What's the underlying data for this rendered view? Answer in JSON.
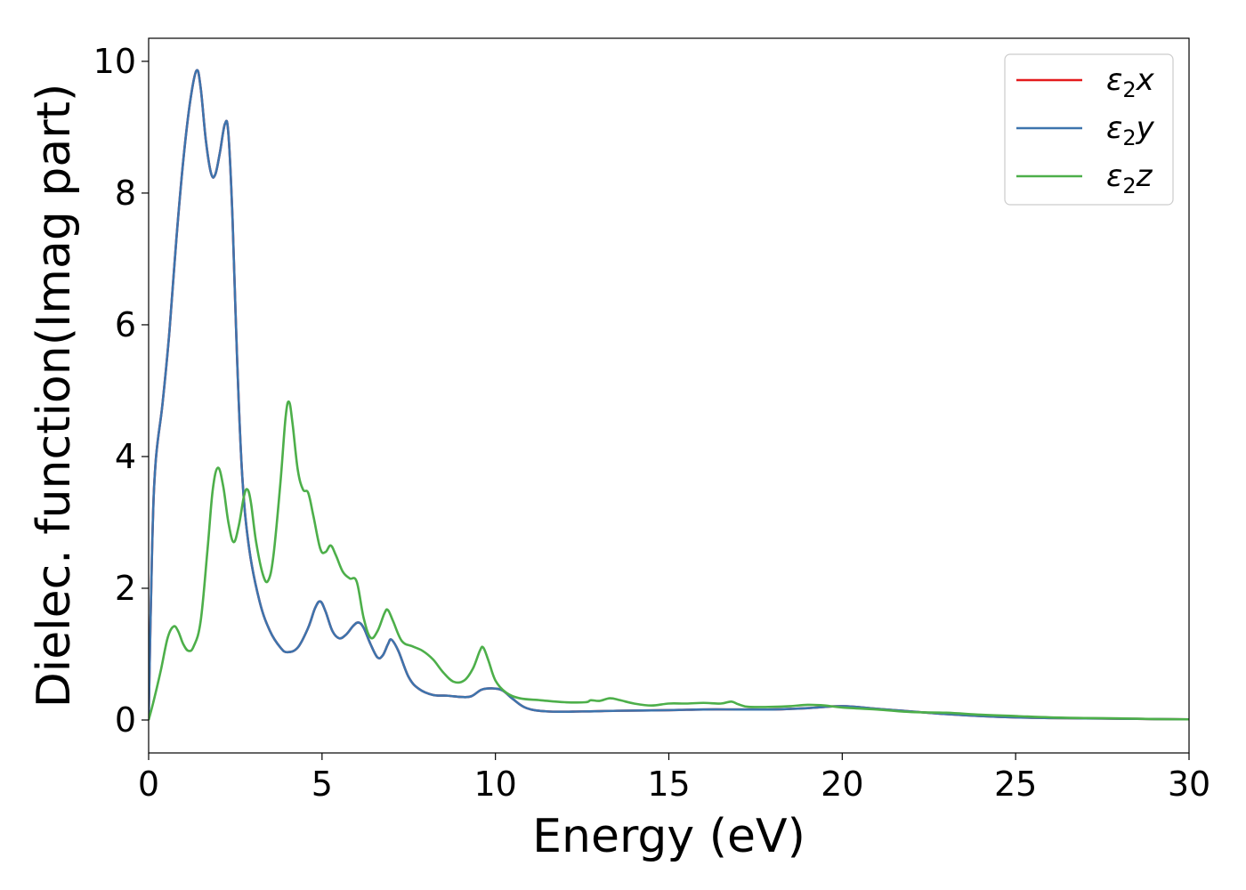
{
  "chart_data": {
    "type": "line",
    "title": "",
    "xlabel": "Energy (eV)",
    "ylabel": "Dielec. function(Imag part)",
    "xlim": [
      0,
      30
    ],
    "ylim": [
      -0.5,
      10.35
    ],
    "xticks": [
      0,
      5,
      10,
      15,
      20,
      25,
      30
    ],
    "yticks": [
      0,
      2,
      4,
      6,
      8,
      10
    ],
    "grid": false,
    "legend_position": "top-right",
    "series": [
      {
        "name": "ε₂x",
        "legend_label": {
          "sym": "ε",
          "sub": "2",
          "var": "x"
        },
        "color": "#e41a1c",
        "points": [
          [
            0,
            0
          ],
          [
            0.1,
            2.6
          ],
          [
            0.2,
            3.9
          ],
          [
            0.4,
            4.8
          ],
          [
            0.6,
            5.9
          ],
          [
            0.8,
            7.3
          ],
          [
            1.0,
            8.5
          ],
          [
            1.2,
            9.4
          ],
          [
            1.38,
            9.86
          ],
          [
            1.5,
            9.6
          ],
          [
            1.65,
            8.8
          ],
          [
            1.8,
            8.3
          ],
          [
            1.92,
            8.28
          ],
          [
            2.05,
            8.6
          ],
          [
            2.2,
            9.05
          ],
          [
            2.3,
            8.9
          ],
          [
            2.42,
            7.6
          ],
          [
            2.55,
            5.5
          ],
          [
            2.7,
            3.7
          ],
          [
            2.9,
            2.6
          ],
          [
            3.2,
            1.8
          ],
          [
            3.5,
            1.35
          ],
          [
            3.8,
            1.1
          ],
          [
            4.0,
            1.03
          ],
          [
            4.3,
            1.1
          ],
          [
            4.6,
            1.4
          ],
          [
            4.8,
            1.7
          ],
          [
            4.95,
            1.8
          ],
          [
            5.1,
            1.65
          ],
          [
            5.3,
            1.35
          ],
          [
            5.5,
            1.24
          ],
          [
            5.7,
            1.3
          ],
          [
            5.9,
            1.43
          ],
          [
            6.05,
            1.48
          ],
          [
            6.2,
            1.4
          ],
          [
            6.4,
            1.15
          ],
          [
            6.6,
            0.95
          ],
          [
            6.75,
            0.98
          ],
          [
            6.9,
            1.15
          ],
          [
            7.0,
            1.22
          ],
          [
            7.2,
            1.05
          ],
          [
            7.5,
            0.65
          ],
          [
            7.8,
            0.47
          ],
          [
            8.2,
            0.38
          ],
          [
            8.6,
            0.37
          ],
          [
            9.0,
            0.35
          ],
          [
            9.3,
            0.36
          ],
          [
            9.6,
            0.46
          ],
          [
            9.9,
            0.48
          ],
          [
            10.2,
            0.45
          ],
          [
            10.5,
            0.32
          ],
          [
            10.9,
            0.18
          ],
          [
            11.5,
            0.13
          ],
          [
            12.5,
            0.13
          ],
          [
            13.5,
            0.14
          ],
          [
            15.0,
            0.15
          ],
          [
            16.0,
            0.16
          ],
          [
            17.0,
            0.16
          ],
          [
            18.0,
            0.16
          ],
          [
            19.0,
            0.18
          ],
          [
            20.0,
            0.21
          ],
          [
            21.0,
            0.17
          ],
          [
            22.0,
            0.13
          ],
          [
            23.0,
            0.09
          ],
          [
            24.0,
            0.06
          ],
          [
            25.0,
            0.04
          ],
          [
            26.0,
            0.03
          ],
          [
            27.0,
            0.025
          ],
          [
            28.0,
            0.02
          ],
          [
            29.0,
            0.015
          ],
          [
            30.0,
            0.01
          ]
        ]
      },
      {
        "name": "ε₂y",
        "legend_label": {
          "sym": "ε",
          "sub": "2",
          "var": "y"
        },
        "color": "#3d74ad",
        "points": [
          [
            0,
            0
          ],
          [
            0.1,
            2.6
          ],
          [
            0.2,
            3.9
          ],
          [
            0.4,
            4.8
          ],
          [
            0.6,
            5.9
          ],
          [
            0.8,
            7.3
          ],
          [
            1.0,
            8.5
          ],
          [
            1.2,
            9.4
          ],
          [
            1.38,
            9.86
          ],
          [
            1.5,
            9.6
          ],
          [
            1.65,
            8.8
          ],
          [
            1.8,
            8.3
          ],
          [
            1.92,
            8.28
          ],
          [
            2.05,
            8.6
          ],
          [
            2.2,
            9.05
          ],
          [
            2.3,
            8.9
          ],
          [
            2.42,
            7.6
          ],
          [
            2.55,
            5.5
          ],
          [
            2.7,
            3.7
          ],
          [
            2.9,
            2.6
          ],
          [
            3.2,
            1.8
          ],
          [
            3.5,
            1.35
          ],
          [
            3.8,
            1.1
          ],
          [
            4.0,
            1.03
          ],
          [
            4.3,
            1.1
          ],
          [
            4.6,
            1.4
          ],
          [
            4.8,
            1.7
          ],
          [
            4.95,
            1.8
          ],
          [
            5.1,
            1.65
          ],
          [
            5.3,
            1.35
          ],
          [
            5.5,
            1.24
          ],
          [
            5.7,
            1.3
          ],
          [
            5.9,
            1.43
          ],
          [
            6.05,
            1.48
          ],
          [
            6.2,
            1.4
          ],
          [
            6.4,
            1.15
          ],
          [
            6.6,
            0.95
          ],
          [
            6.75,
            0.98
          ],
          [
            6.9,
            1.15
          ],
          [
            7.0,
            1.22
          ],
          [
            7.2,
            1.05
          ],
          [
            7.5,
            0.65
          ],
          [
            7.8,
            0.47
          ],
          [
            8.2,
            0.38
          ],
          [
            8.6,
            0.37
          ],
          [
            9.0,
            0.35
          ],
          [
            9.3,
            0.36
          ],
          [
            9.6,
            0.46
          ],
          [
            9.9,
            0.48
          ],
          [
            10.2,
            0.45
          ],
          [
            10.5,
            0.32
          ],
          [
            10.9,
            0.18
          ],
          [
            11.5,
            0.13
          ],
          [
            12.5,
            0.13
          ],
          [
            13.5,
            0.14
          ],
          [
            15.0,
            0.15
          ],
          [
            16.0,
            0.16
          ],
          [
            17.0,
            0.16
          ],
          [
            18.0,
            0.16
          ],
          [
            19.0,
            0.18
          ],
          [
            20.0,
            0.21
          ],
          [
            21.0,
            0.17
          ],
          [
            22.0,
            0.13
          ],
          [
            23.0,
            0.09
          ],
          [
            24.0,
            0.06
          ],
          [
            25.0,
            0.04
          ],
          [
            26.0,
            0.03
          ],
          [
            27.0,
            0.025
          ],
          [
            28.0,
            0.02
          ],
          [
            29.0,
            0.015
          ],
          [
            30.0,
            0.01
          ]
        ]
      },
      {
        "name": "ε₂z",
        "legend_label": {
          "sym": "ε",
          "sub": "2",
          "var": "z"
        },
        "color": "#4daf4a",
        "points": [
          [
            0,
            0
          ],
          [
            0.15,
            0.3
          ],
          [
            0.35,
            0.75
          ],
          [
            0.55,
            1.25
          ],
          [
            0.72,
            1.42
          ],
          [
            0.85,
            1.35
          ],
          [
            1.0,
            1.15
          ],
          [
            1.15,
            1.05
          ],
          [
            1.3,
            1.12
          ],
          [
            1.5,
            1.5
          ],
          [
            1.7,
            2.6
          ],
          [
            1.85,
            3.5
          ],
          [
            2.0,
            3.83
          ],
          [
            2.15,
            3.55
          ],
          [
            2.3,
            3.0
          ],
          [
            2.45,
            2.7
          ],
          [
            2.6,
            2.95
          ],
          [
            2.75,
            3.4
          ],
          [
            2.85,
            3.5
          ],
          [
            2.95,
            3.3
          ],
          [
            3.1,
            2.7
          ],
          [
            3.3,
            2.2
          ],
          [
            3.45,
            2.12
          ],
          [
            3.6,
            2.5
          ],
          [
            3.8,
            3.6
          ],
          [
            3.95,
            4.6
          ],
          [
            4.05,
            4.83
          ],
          [
            4.15,
            4.5
          ],
          [
            4.3,
            3.8
          ],
          [
            4.45,
            3.5
          ],
          [
            4.6,
            3.45
          ],
          [
            4.75,
            3.1
          ],
          [
            4.95,
            2.6
          ],
          [
            5.1,
            2.55
          ],
          [
            5.25,
            2.65
          ],
          [
            5.4,
            2.5
          ],
          [
            5.6,
            2.25
          ],
          [
            5.8,
            2.15
          ],
          [
            6.0,
            2.1
          ],
          [
            6.2,
            1.55
          ],
          [
            6.4,
            1.25
          ],
          [
            6.6,
            1.35
          ],
          [
            6.8,
            1.62
          ],
          [
            6.9,
            1.67
          ],
          [
            7.05,
            1.5
          ],
          [
            7.3,
            1.2
          ],
          [
            7.6,
            1.12
          ],
          [
            7.9,
            1.05
          ],
          [
            8.2,
            0.92
          ],
          [
            8.5,
            0.72
          ],
          [
            8.8,
            0.58
          ],
          [
            9.1,
            0.6
          ],
          [
            9.35,
            0.78
          ],
          [
            9.55,
            1.05
          ],
          [
            9.65,
            1.1
          ],
          [
            9.8,
            0.9
          ],
          [
            10.0,
            0.6
          ],
          [
            10.3,
            0.42
          ],
          [
            10.7,
            0.33
          ],
          [
            11.3,
            0.3
          ],
          [
            12.0,
            0.27
          ],
          [
            12.6,
            0.27
          ],
          [
            12.75,
            0.3
          ],
          [
            13.0,
            0.29
          ],
          [
            13.3,
            0.33
          ],
          [
            13.6,
            0.3
          ],
          [
            14.0,
            0.25
          ],
          [
            14.5,
            0.22
          ],
          [
            15.0,
            0.25
          ],
          [
            15.5,
            0.25
          ],
          [
            16.0,
            0.26
          ],
          [
            16.5,
            0.25
          ],
          [
            16.8,
            0.28
          ],
          [
            17.0,
            0.24
          ],
          [
            17.3,
            0.2
          ],
          [
            18.0,
            0.2
          ],
          [
            18.5,
            0.21
          ],
          [
            19.0,
            0.23
          ],
          [
            19.5,
            0.22
          ],
          [
            20.0,
            0.19
          ],
          [
            21.0,
            0.16
          ],
          [
            22.0,
            0.12
          ],
          [
            23.0,
            0.11
          ],
          [
            24.0,
            0.08
          ],
          [
            25.0,
            0.06
          ],
          [
            26.0,
            0.04
          ],
          [
            27.0,
            0.03
          ],
          [
            28.0,
            0.025
          ],
          [
            29.0,
            0.015
          ],
          [
            30.0,
            0.01
          ]
        ]
      }
    ]
  }
}
